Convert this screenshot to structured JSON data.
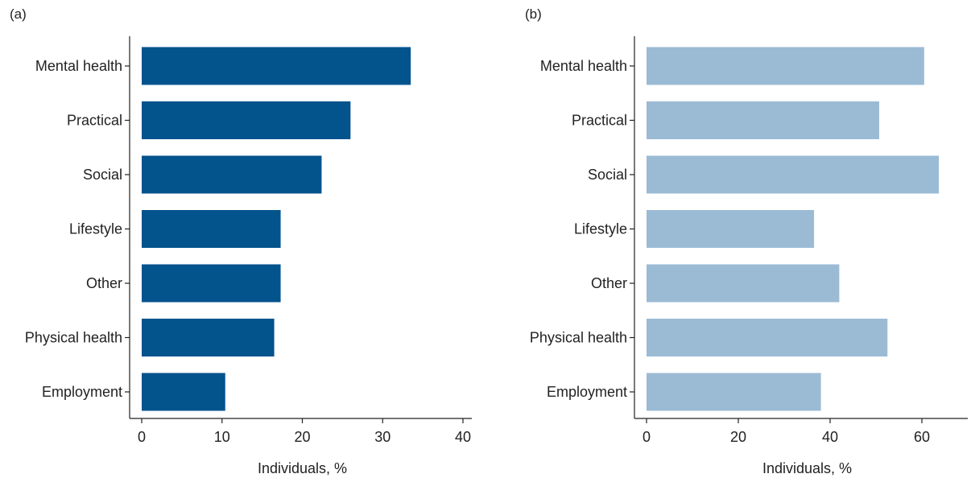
{
  "chart_data": [
    {
      "type": "bar",
      "orientation": "horizontal",
      "panel_label": "(a)",
      "categories": [
        "Mental health",
        "Practical",
        "Social",
        "Lifestyle",
        "Other",
        "Physical health",
        "Employment"
      ],
      "values": [
        33.5,
        26.0,
        22.4,
        17.3,
        17.3,
        16.5,
        10.4
      ],
      "xlabel": "Individuals, %",
      "xlim": [
        0,
        40
      ],
      "xticks": [
        0,
        10,
        20,
        30,
        40
      ],
      "color": "#03538d",
      "grid": false,
      "legend": "none"
    },
    {
      "type": "bar",
      "orientation": "horizontal",
      "panel_label": "(b)",
      "categories": [
        "Mental health",
        "Practical",
        "Social",
        "Lifestyle",
        "Other",
        "Physical health",
        "Employment"
      ],
      "values": [
        60.5,
        50.7,
        63.7,
        36.5,
        42.0,
        52.5,
        38.0
      ],
      "xlabel": "Individuals, %",
      "xlim": [
        0,
        70
      ],
      "xticks": [
        0,
        20,
        40,
        60
      ],
      "color": "#9bbbd5",
      "grid": false,
      "legend": "none"
    }
  ]
}
